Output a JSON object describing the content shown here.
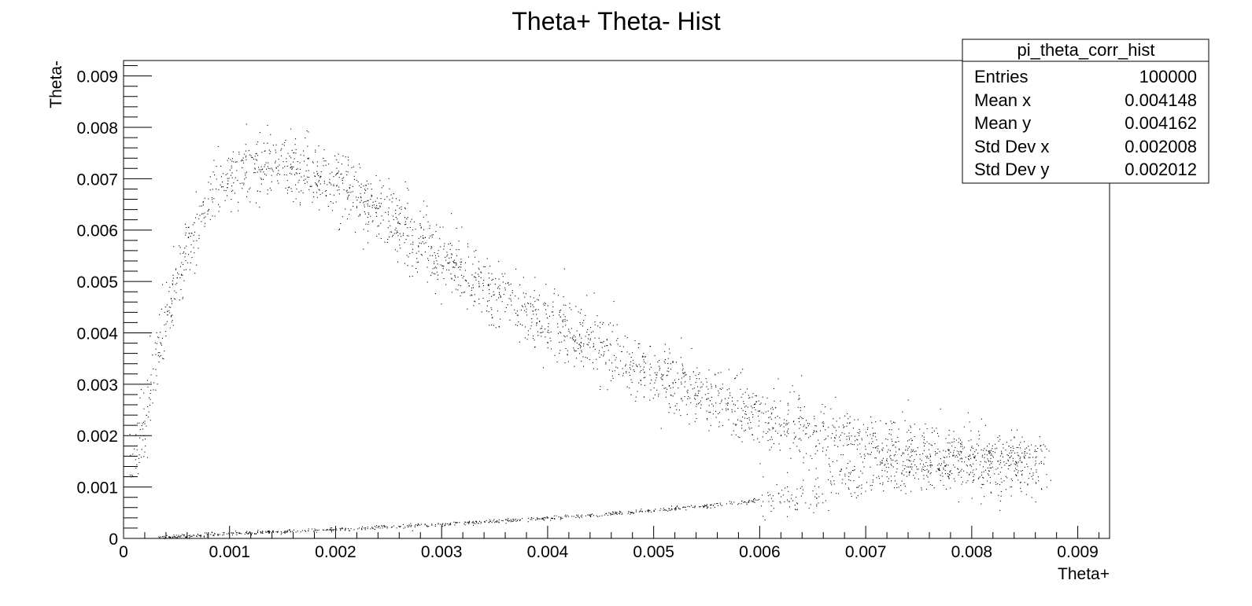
{
  "chart_data": {
    "type": "scatter",
    "title": "Theta+ Theta- Hist",
    "xlabel": "Theta+",
    "ylabel": "Theta-",
    "xlim": [
      0,
      0.0093
    ],
    "ylim": [
      0,
      0.0093
    ],
    "x_ticks": [
      "0",
      "0.001",
      "0.002",
      "0.003",
      "0.004",
      "0.005",
      "0.006",
      "0.007",
      "0.008",
      "0.009"
    ],
    "y_ticks": [
      "0",
      "0.001",
      "0.002",
      "0.003",
      "0.004",
      "0.005",
      "0.006",
      "0.007",
      "0.008",
      "0.009"
    ],
    "grid": false,
    "marker_color": "#000000",
    "stats_box": {
      "name": "pi_theta_corr_hist",
      "rows": [
        {
          "label": "Entries",
          "value": "100000"
        },
        {
          "label": "Mean x",
          "value": "0.004148"
        },
        {
          "label": "Mean y",
          "value": "0.004162"
        },
        {
          "label": "Std Dev x",
          "value": "0.002008"
        },
        {
          "label": "Std Dev y",
          "value": "0.002012"
        }
      ]
    },
    "bands": [
      {
        "description": "upper band (center line)",
        "points": [
          [
            0.0001,
            0.0012
          ],
          [
            0.0003,
            0.0035
          ],
          [
            0.0005,
            0.005
          ],
          [
            0.0007,
            0.0062
          ],
          [
            0.0009,
            0.0069
          ],
          [
            0.0012,
            0.0073
          ],
          [
            0.0015,
            0.0073
          ],
          [
            0.002,
            0.0069
          ],
          [
            0.0025,
            0.0062
          ],
          [
            0.003,
            0.0055
          ],
          [
            0.0035,
            0.0048
          ],
          [
            0.004,
            0.0042
          ],
          [
            0.0045,
            0.0037
          ],
          [
            0.005,
            0.0032
          ],
          [
            0.0055,
            0.0028
          ],
          [
            0.006,
            0.0024
          ],
          [
            0.0065,
            0.0021
          ],
          [
            0.007,
            0.0018
          ],
          [
            0.0075,
            0.0016
          ],
          [
            0.008,
            0.0015
          ],
          [
            0.0087,
            0.0015
          ]
        ]
      },
      {
        "description": "lower band (center line)",
        "points": [
          [
            0.0003,
            2e-05
          ],
          [
            0.001,
            0.0001
          ],
          [
            0.002,
            0.00018
          ],
          [
            0.003,
            0.00028
          ],
          [
            0.004,
            0.0004
          ],
          [
            0.005,
            0.00055
          ],
          [
            0.006,
            0.00075
          ],
          [
            0.0065,
            0.0009
          ],
          [
            0.007,
            0.0011
          ],
          [
            0.0075,
            0.00135
          ],
          [
            0.008,
            0.0015
          ],
          [
            0.0085,
            0.00155
          ]
        ]
      }
    ]
  }
}
